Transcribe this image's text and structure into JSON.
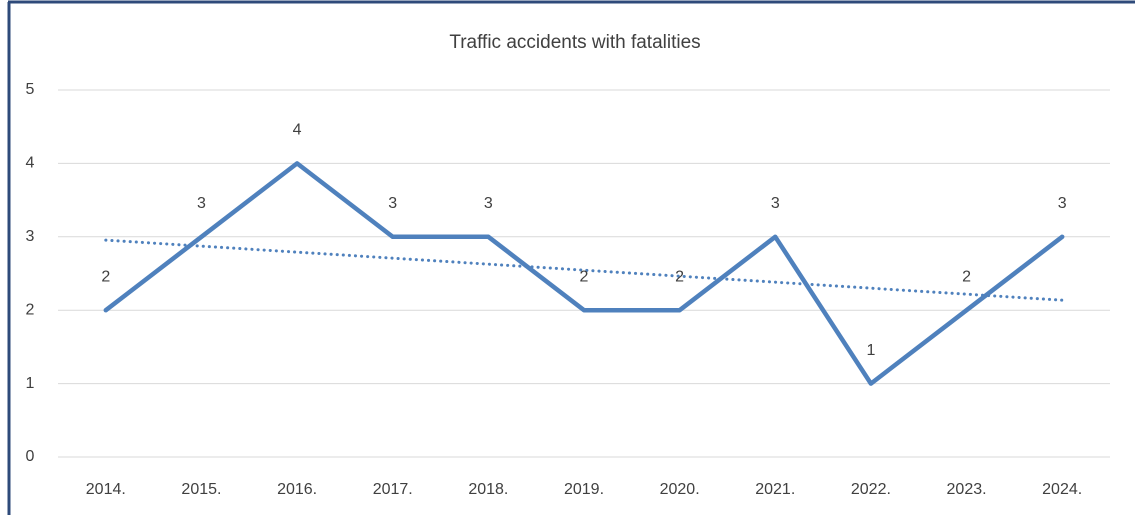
{
  "chart_data": {
    "type": "line",
    "title": "Traffic accidents with fatalities",
    "categories": [
      "2014.",
      "2015.",
      "2016.",
      "2017.",
      "2018.",
      "2019.",
      "2020.",
      "2021.",
      "2022.",
      "2023.",
      "2024."
    ],
    "values": [
      2,
      3,
      4,
      3,
      3,
      2,
      2,
      3,
      1,
      2,
      3
    ],
    "color": "#4f81bd",
    "ylim": [
      0,
      5
    ],
    "yticks": [
      0,
      1,
      2,
      3,
      4,
      5
    ],
    "grid": true,
    "data_labels": true,
    "trendline": "linear"
  }
}
